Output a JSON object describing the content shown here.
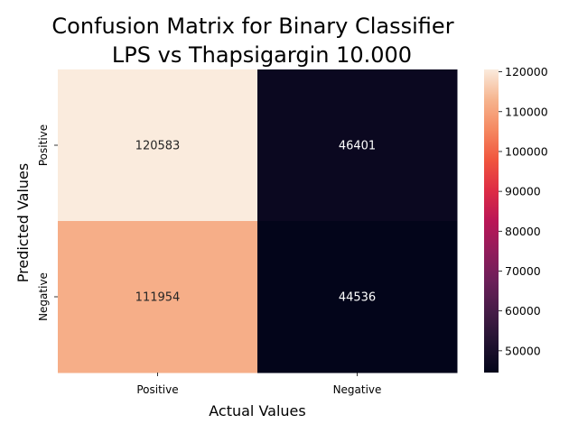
{
  "chart_data": {
    "type": "heatmap",
    "title_lines": [
      "Confusion Matrix for Binary Classifier",
      "LPS vs Thapsigargin 10.000"
    ],
    "xlabel": "Actual Values",
    "ylabel": "Predicted Values",
    "x_categories": [
      "Positive",
      "Negative"
    ],
    "y_categories": [
      "Positive",
      "Negative"
    ],
    "values": [
      [
        120583,
        46401
      ],
      [
        111954,
        44536
      ]
    ],
    "colorbar": {
      "range": [
        44536,
        120583
      ],
      "ticks": [
        50000,
        60000,
        70000,
        80000,
        90000,
        100000,
        110000,
        120000
      ],
      "tick_labels": [
        "50000",
        "60000",
        "70000",
        "80000",
        "90000",
        "100000",
        "110000",
        "120000"
      ]
    },
    "colormap": "rocket",
    "grid": false,
    "legend": "colorbar-right"
  }
}
